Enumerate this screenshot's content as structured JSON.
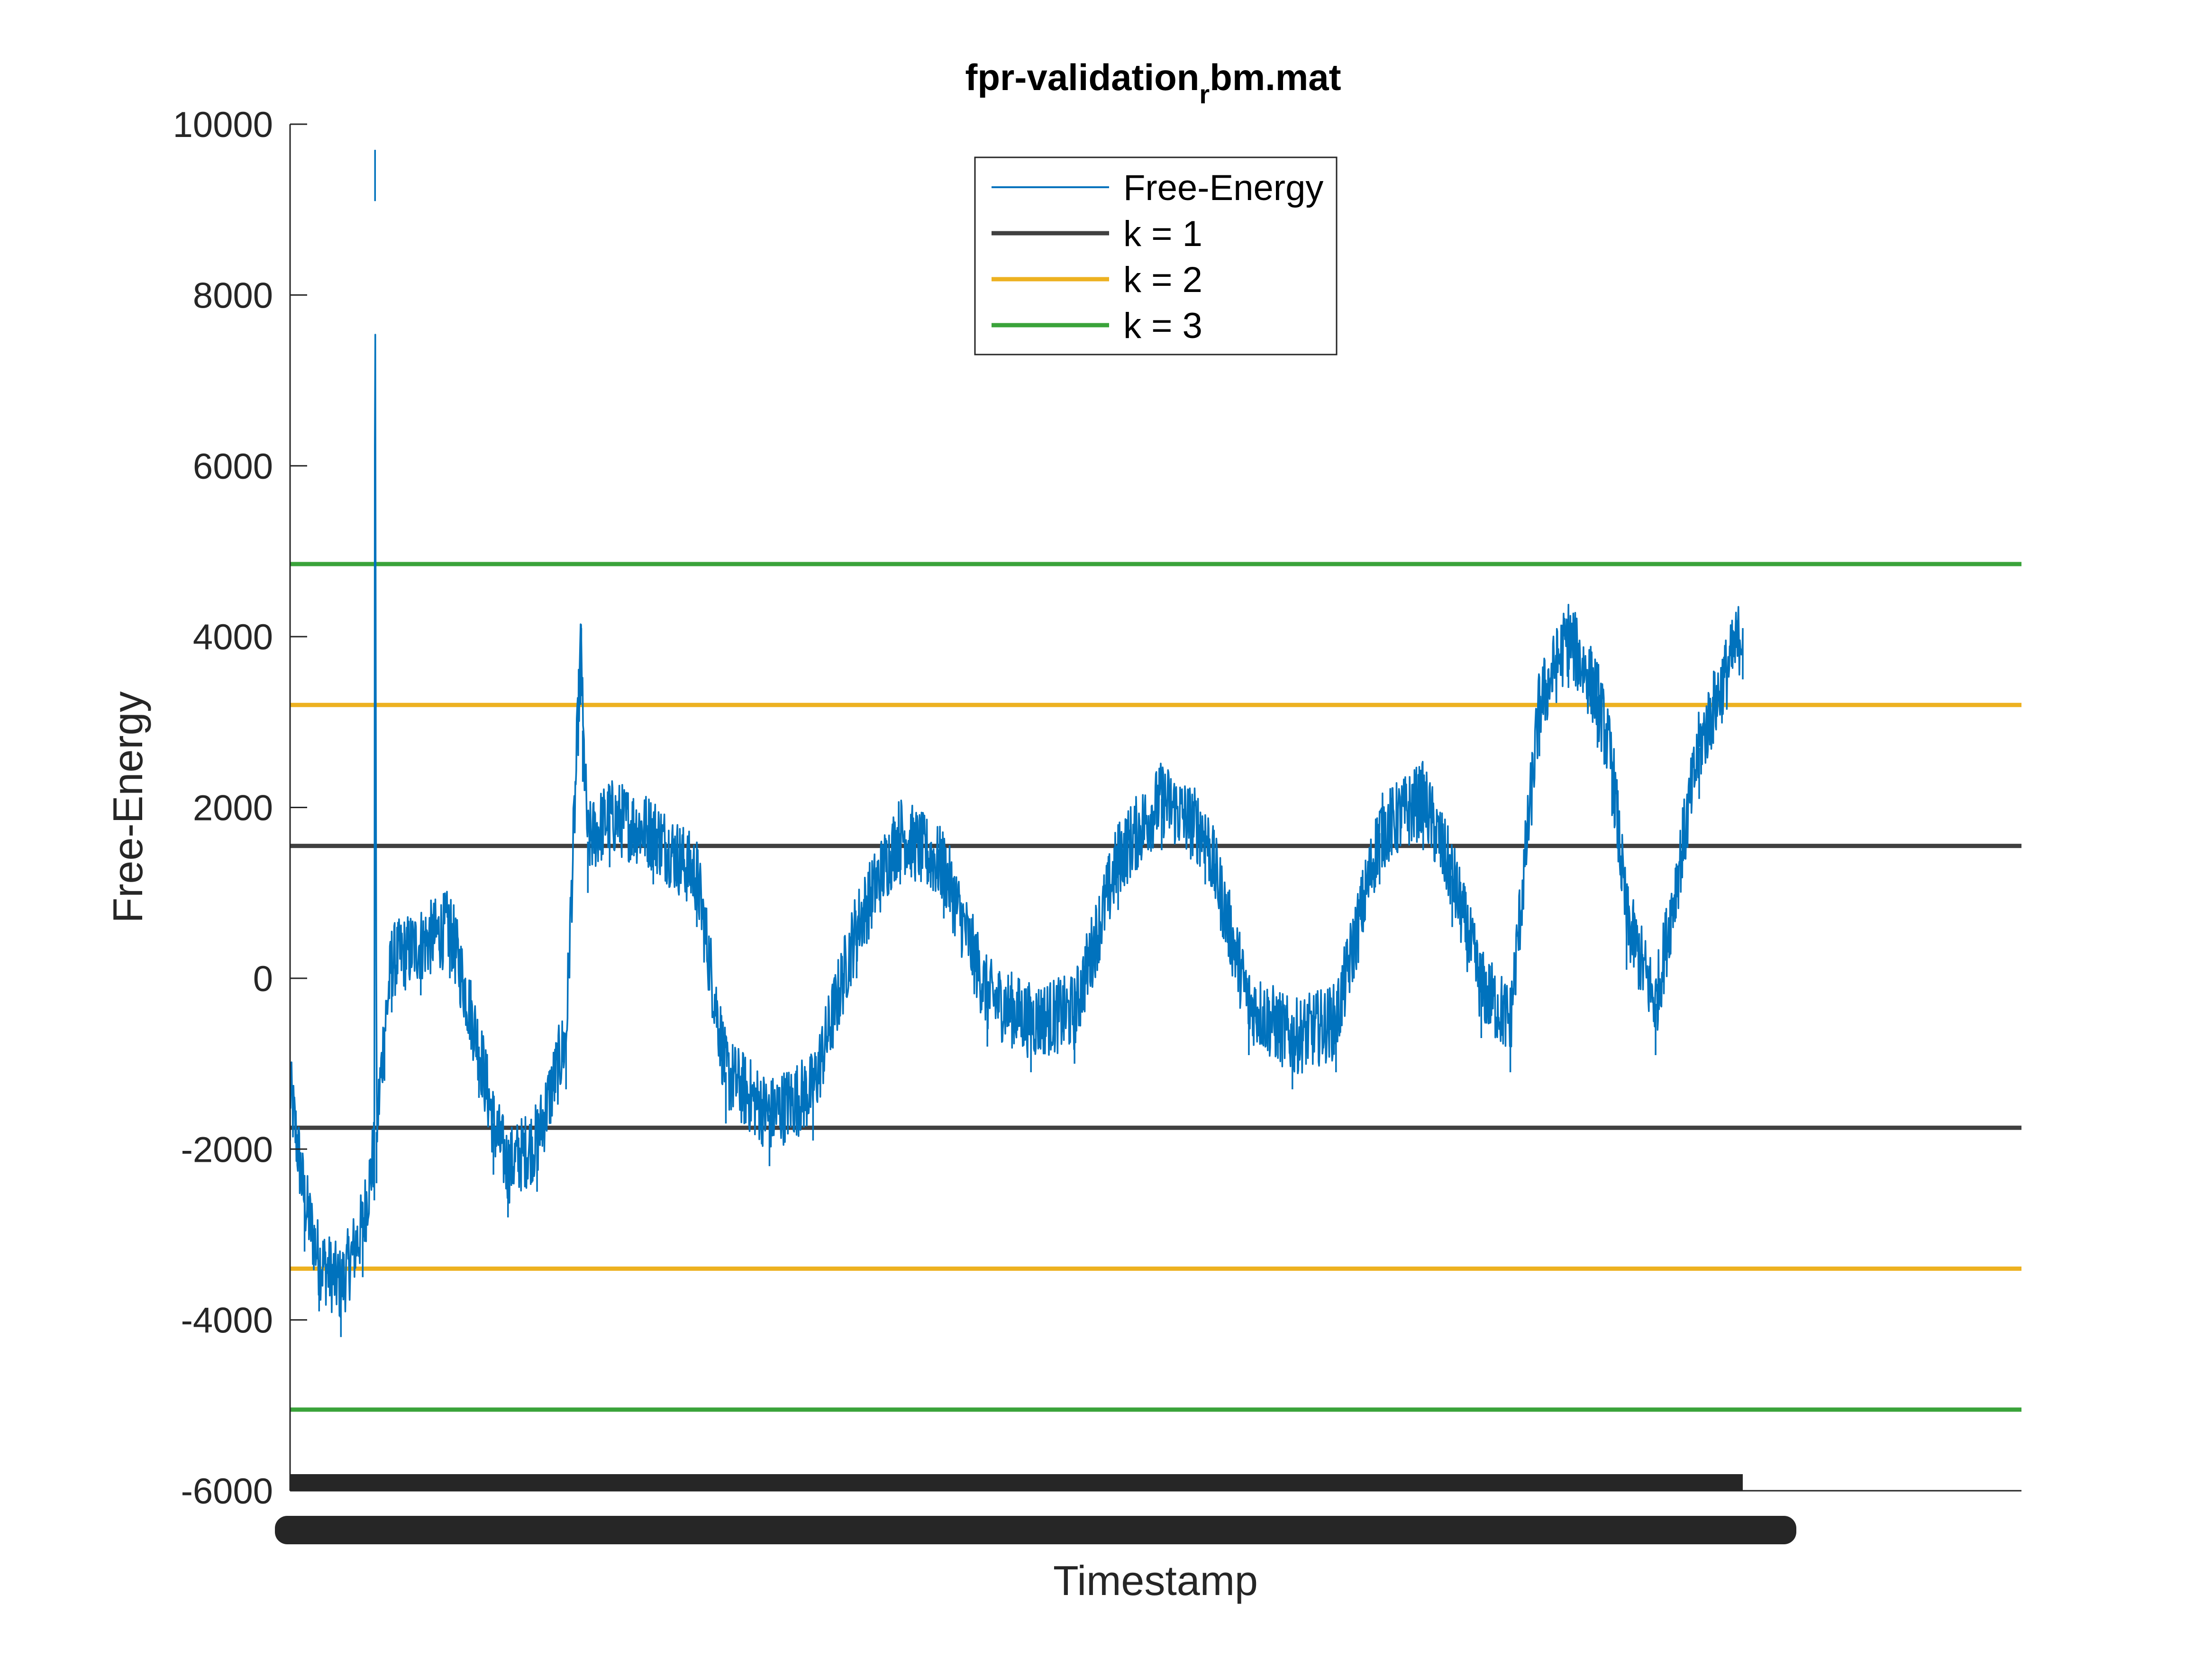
{
  "chart_data": {
    "type": "line",
    "title": {
      "main": "fpr-validation",
      "subscript": "r",
      "suffix": "bm.mat"
    },
    "xlabel": "Timestamp",
    "ylabel": "Free-Energy",
    "ylim": [
      -6000,
      10000
    ],
    "yticks": [
      -6000,
      -4000,
      -2000,
      0,
      2000,
      4000,
      6000,
      8000,
      10000
    ],
    "ytick_labels": [
      "-6000",
      "-4000",
      "-2000",
      "0",
      "2000",
      "4000",
      "6000",
      "8000",
      "10000"
    ],
    "x_tick_labels_note": "dense overlapping tick labels (unreadable)",
    "grid": false,
    "legend": {
      "location": "top-center",
      "entries": [
        "Free-Energy",
        "k = 1",
        "k = 2",
        "k = 3"
      ]
    },
    "colors": {
      "free_energy": "#0072BD",
      "k1": "#404040",
      "k2": "#EDB120",
      "k3": "#3AA33A"
    },
    "series": [
      {
        "name": "Free-Energy",
        "x": [
          0.0,
          0.01,
          0.02,
          0.035,
          0.05,
          0.058,
          0.0585,
          0.0595,
          0.065,
          0.07,
          0.09,
          0.11,
          0.13,
          0.14,
          0.15,
          0.17,
          0.19,
          0.2,
          0.2005,
          0.2015,
          0.205,
          0.22,
          0.25,
          0.28,
          0.3,
          0.33,
          0.36,
          0.39,
          0.42,
          0.45,
          0.48,
          0.51,
          0.54,
          0.57,
          0.6,
          0.63,
          0.66,
          0.69,
          0.72,
          0.75,
          0.78,
          0.8,
          0.82,
          0.84,
          0.86,
          0.88,
          0.9,
          0.91,
          0.92,
          0.94,
          0.97,
          1.0
        ],
        "values": [
          -1300,
          -2600,
          -3300,
          -3600,
          -2900,
          -2000,
          9700,
          -1800,
          -600,
          200,
          400,
          600,
          -800,
          -1700,
          -2200,
          -1900,
          -700,
          3800,
          4100,
          2900,
          1600,
          1900,
          1700,
          1200,
          -1100,
          -1600,
          -1300,
          600,
          1700,
          1300,
          -200,
          -500,
          -400,
          1400,
          2100,
          1700,
          -300,
          -700,
          -500,
          1700,
          2100,
          1200,
          -100,
          -500,
          3200,
          4000,
          3300,
          2500,
          700,
          -300,
          2700,
          4100
        ]
      },
      {
        "name": "k = 1",
        "values": [
          1550,
          -1750
        ]
      },
      {
        "name": "k = 2",
        "values": [
          3200,
          -3400
        ]
      },
      {
        "name": "k = 3",
        "values": [
          4850,
          -5050
        ]
      }
    ]
  }
}
